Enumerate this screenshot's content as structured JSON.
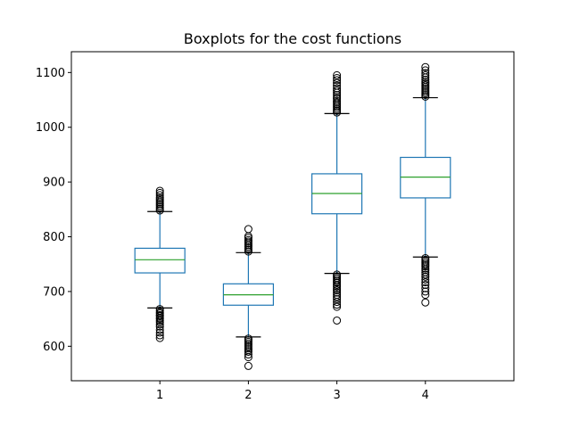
{
  "chart_data": {
    "type": "boxplot",
    "title": "Boxplots for the cost functions",
    "xlabel": "",
    "ylabel": "",
    "categories": [
      "1",
      "2",
      "3",
      "4"
    ],
    "ylim": [
      537,
      1138
    ],
    "yticks": [
      600,
      700,
      800,
      900,
      1000,
      1100
    ],
    "grid": false,
    "colors": {
      "box": "#1f77b4",
      "median": "#2ca02c",
      "whisker": "#1f77b4",
      "cap": "#000000",
      "flier": "#000000"
    },
    "boxes": [
      {
        "label": "1",
        "whisker_low": 670,
        "q1": 734,
        "median": 758,
        "q3": 779,
        "whisker_high": 846,
        "fliers_low": [
          668,
          665,
          662,
          660,
          657,
          655,
          652,
          650,
          647,
          644,
          640,
          636,
          630,
          625,
          620,
          615
        ],
        "fliers_high": [
          848,
          851,
          854,
          857,
          860,
          863,
          866,
          869,
          872,
          876,
          880,
          884
        ]
      },
      {
        "label": "2",
        "whisker_low": 617,
        "q1": 675,
        "median": 694,
        "q3": 714,
        "whisker_high": 771,
        "fliers_low": [
          614,
          611,
          608,
          605,
          602,
          599,
          596,
          593,
          590,
          585,
          580,
          564
        ],
        "fliers_high": [
          773,
          776,
          779,
          782,
          785,
          788,
          791,
          794,
          798,
          801,
          814
        ]
      },
      {
        "label": "3",
        "whisker_low": 733,
        "q1": 842,
        "median": 879,
        "q3": 915,
        "whisker_high": 1025,
        "fliers_low": [
          731,
          728,
          725,
          722,
          719,
          716,
          712,
          709,
          705,
          702,
          698,
          694,
          690,
          686,
          681,
          676,
          672,
          647
        ],
        "fliers_high": [
          1027,
          1030,
          1033,
          1036,
          1039,
          1042,
          1045,
          1048,
          1052,
          1055,
          1059,
          1063,
          1067,
          1071,
          1076,
          1081,
          1086,
          1090,
          1095
        ]
      },
      {
        "label": "4",
        "whisker_low": 763,
        "q1": 871,
        "median": 909,
        "q3": 945,
        "whisker_high": 1054,
        "fliers_low": [
          761,
          758,
          755,
          752,
          749,
          746,
          742,
          739,
          735,
          731,
          727,
          722,
          717,
          712,
          706,
          700,
          694,
          680
        ],
        "fliers_high": [
          1056,
          1059,
          1062,
          1065,
          1068,
          1071,
          1074,
          1077,
          1080,
          1083,
          1087,
          1091,
          1095,
          1099,
          1104,
          1110
        ]
      }
    ]
  }
}
